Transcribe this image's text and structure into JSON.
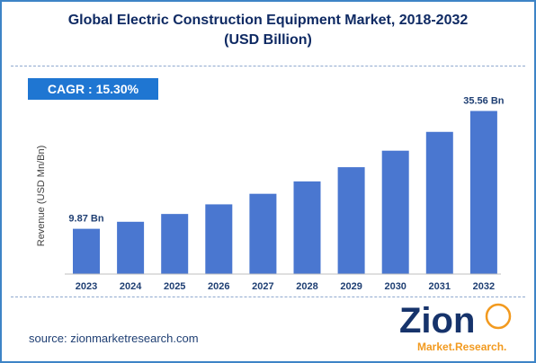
{
  "title": {
    "line1": "Global Electric Construction Equipment Market, 2018-2032",
    "line2": "(USD Billion)"
  },
  "cagr_label": "CAGR : 15.30%",
  "source": "source: zionmarketresearch.com",
  "logo": {
    "word": "Zion",
    "sub": "Market.Research."
  },
  "colors": {
    "bar": "#4a77d0",
    "accent": "#1f76d2",
    "title": "#0f2a63",
    "logo_orange": "#f29a1f",
    "logo_navy": "#16336b"
  },
  "chart_data": {
    "type": "bar",
    "title": "Global Electric Construction Equipment Market, 2018-2032 (USD Billion)",
    "ylabel": "Revenue (USD Mn/Bn)",
    "xlabel": "",
    "categories": [
      "2023",
      "2024",
      "2025",
      "2026",
      "2027",
      "2028",
      "2029",
      "2030",
      "2031",
      "2032"
    ],
    "values": [
      9.87,
      11.4,
      13.1,
      15.2,
      17.5,
      20.2,
      23.3,
      26.9,
      31.0,
      35.56
    ],
    "data_labels": [
      {
        "index": 0,
        "text": "9.87 Bn"
      },
      {
        "index": 9,
        "text": "35.56 Bn"
      }
    ],
    "ylim": [
      0,
      37.5
    ],
    "grid": false,
    "legend": "none",
    "annotation": "CAGR : 15.30%"
  }
}
